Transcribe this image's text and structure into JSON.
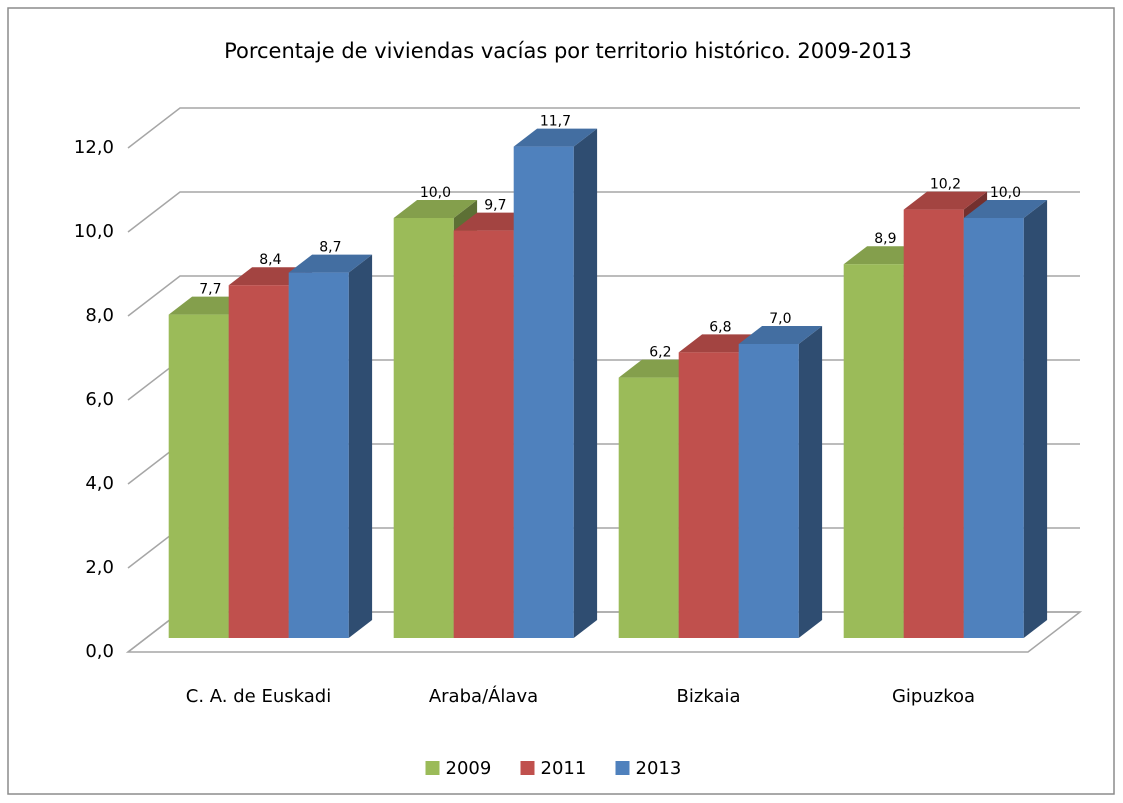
{
  "chart_data": {
    "type": "bar3d",
    "title": "Porcentaje de viviendas vacías por territorio histórico. 2009-2013",
    "categories": [
      "C. A. de Euskadi",
      "Araba/Álava",
      "Bizkaia",
      "Gipuzkoa"
    ],
    "series": [
      {
        "name": "2009",
        "color": "#9bbb59",
        "values": [
          7.7,
          10.0,
          6.2,
          8.9
        ],
        "value_labels": [
          "7,7",
          "10,0",
          "6,2",
          "8,9"
        ]
      },
      {
        "name": "2011",
        "color": "#c0504d",
        "values": [
          8.4,
          9.7,
          6.8,
          10.2
        ],
        "value_labels": [
          "8,4",
          "9,7",
          "6,8",
          "10,2"
        ]
      },
      {
        "name": "2013",
        "color": "#4f81bd",
        "values": [
          8.7,
          11.7,
          7.0,
          10.0
        ],
        "value_labels": [
          "8,7",
          "11,7",
          "7,0",
          "10,0"
        ]
      }
    ],
    "ylim": [
      0,
      12
    ],
    "yticks": [
      {
        "value": 0,
        "label": "0,0"
      },
      {
        "value": 2,
        "label": "2,0"
      },
      {
        "value": 4,
        "label": "4,0"
      },
      {
        "value": 6,
        "label": "6,0"
      },
      {
        "value": 8,
        "label": "8,0"
      },
      {
        "value": 10,
        "label": "10,0"
      },
      {
        "value": 12,
        "label": "12,0"
      }
    ],
    "grid": true,
    "legend": "bottom"
  }
}
